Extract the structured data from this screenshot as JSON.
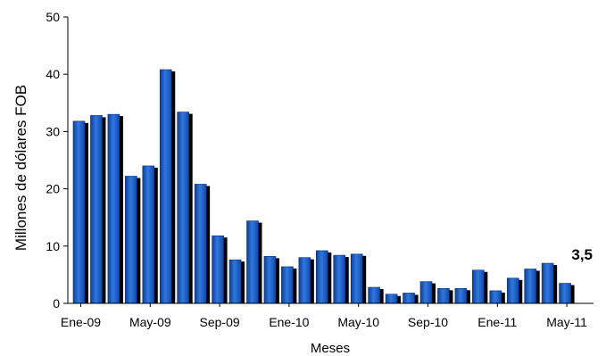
{
  "chart_data": {
    "type": "bar",
    "title": "",
    "xlabel": "Meses",
    "ylabel": "Millones de dólares FOB",
    "ylim": [
      0,
      50
    ],
    "yticks": [
      0,
      10,
      20,
      30,
      40,
      50
    ],
    "xtick_labels": [
      "Ene-09",
      "May-09",
      "Sep-09",
      "Ene-10",
      "May-10",
      "Sep-10",
      "Ene-11",
      "May-11"
    ],
    "categories": [
      "Ene-09",
      "Feb-09",
      "Mar-09",
      "Abr-09",
      "May-09",
      "Jun-09",
      "Jul-09",
      "Ago-09",
      "Sep-09",
      "Oct-09",
      "Nov-09",
      "Dic-09",
      "Ene-10",
      "Feb-10",
      "Mar-10",
      "Abr-10",
      "May-10",
      "Jun-10",
      "Jul-10",
      "Ago-10",
      "Sep-10",
      "Oct-10",
      "Nov-10",
      "Dic-10",
      "Ene-11",
      "Feb-11",
      "Mar-11",
      "Abr-11",
      "May-11"
    ],
    "values": [
      31.8,
      32.8,
      33.0,
      22.2,
      24.0,
      40.8,
      33.4,
      20.8,
      11.8,
      7.6,
      14.4,
      8.2,
      6.4,
      8.0,
      9.2,
      8.4,
      8.6,
      2.8,
      1.6,
      1.8,
      3.8,
      2.6,
      2.6,
      5.8,
      2.2,
      4.4,
      6.0,
      7.0,
      3.5
    ],
    "annotation": "3,5",
    "bar_color": "#1f5fbf",
    "shadow_color": "#000000",
    "grid": false,
    "legend": "none"
  }
}
